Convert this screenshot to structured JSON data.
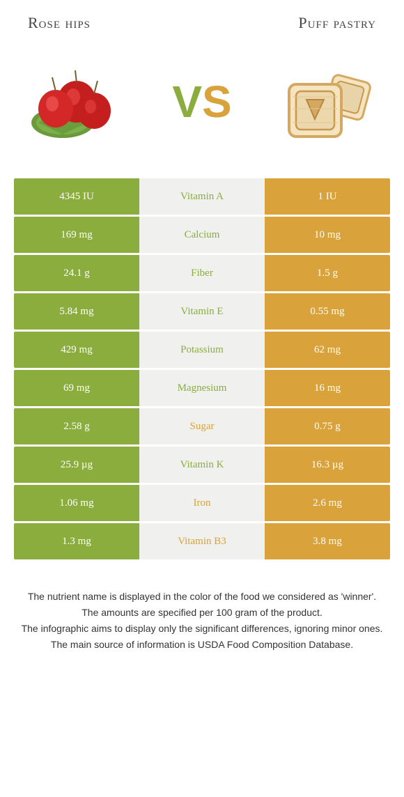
{
  "header": {
    "left": "Rose hips",
    "right": "Puff pastry"
  },
  "vs": {
    "v": "V",
    "s": "S"
  },
  "colors": {
    "left": "#8aad3e",
    "right": "#d9a23a",
    "mid_bg": "#f0f0ee"
  },
  "rows": [
    {
      "left": "4345 IU",
      "label": "Vitamin A",
      "right": "1 IU",
      "winner": "left"
    },
    {
      "left": "169 mg",
      "label": "Calcium",
      "right": "10 mg",
      "winner": "left"
    },
    {
      "left": "24.1 g",
      "label": "Fiber",
      "right": "1.5 g",
      "winner": "left"
    },
    {
      "left": "5.84 mg",
      "label": "Vitamin E",
      "right": "0.55 mg",
      "winner": "left"
    },
    {
      "left": "429 mg",
      "label": "Potassium",
      "right": "62 mg",
      "winner": "left"
    },
    {
      "left": "69 mg",
      "label": "Magnesium",
      "right": "16 mg",
      "winner": "left"
    },
    {
      "left": "2.58 g",
      "label": "Sugar",
      "right": "0.75 g",
      "winner": "right"
    },
    {
      "left": "25.9 µg",
      "label": "Vitamin K",
      "right": "16.3 µg",
      "winner": "left"
    },
    {
      "left": "1.06 mg",
      "label": "Iron",
      "right": "2.6 mg",
      "winner": "right"
    },
    {
      "left": "1.3 mg",
      "label": "Vitamin B3",
      "right": "3.8 mg",
      "winner": "right"
    }
  ],
  "footer": {
    "l1": "The nutrient name is displayed in the color of the food we considered as 'winner'.",
    "l2": "The amounts are specified per 100 gram of the product.",
    "l3": "The infographic aims to display only the significant differences, ignoring minor ones.",
    "l4": "The main source of information is USDA Food Composition Database."
  }
}
